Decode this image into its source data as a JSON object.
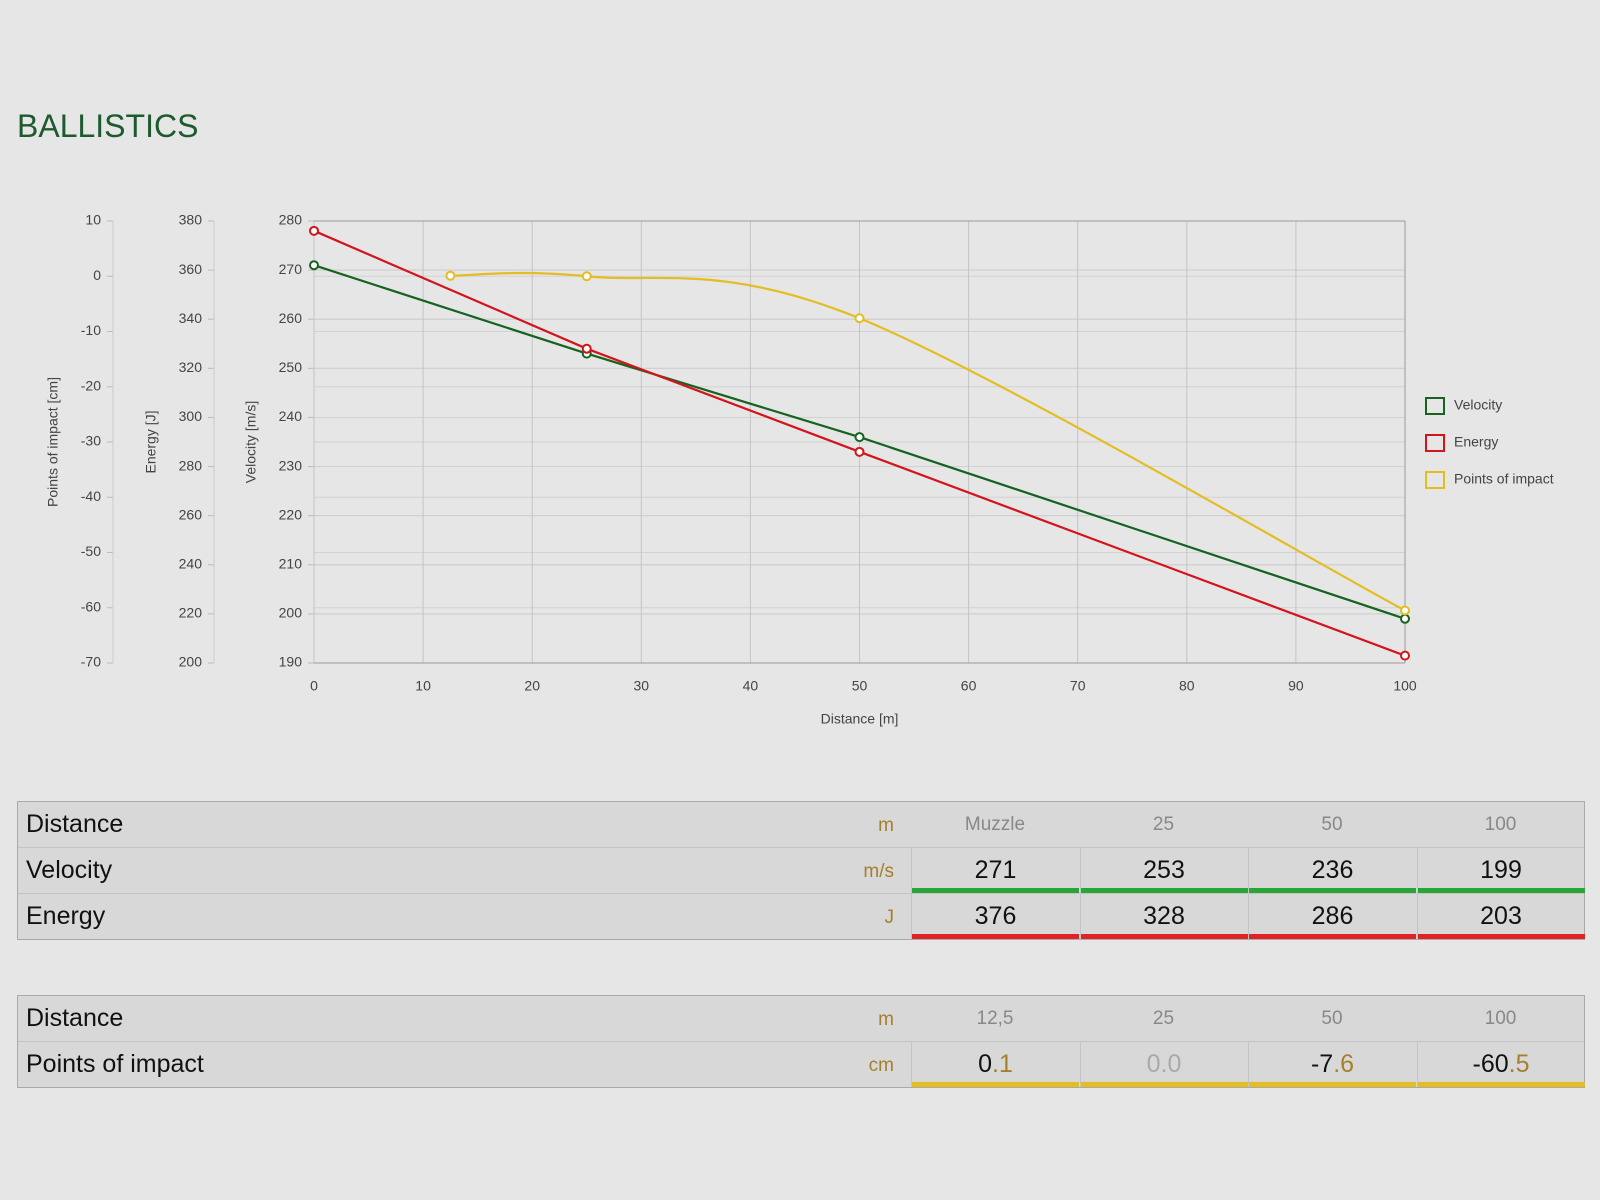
{
  "header": {
    "title": "BALLISTICS"
  },
  "chart_data": {
    "type": "line",
    "x_label": "Distance [m]",
    "y_label": "Velocity [m/s]",
    "y2_label": "Energy [J]",
    "y3_label": "Points of impact [cm]",
    "xlim": [
      0,
      100
    ],
    "xticks": [
      0,
      10,
      20,
      30,
      40,
      50,
      60,
      70,
      80,
      90,
      100
    ],
    "ylim": [
      190,
      280
    ],
    "yticks": [
      190,
      200,
      210,
      220,
      230,
      240,
      250,
      260,
      270,
      280
    ],
    "y2lim": [
      200,
      380
    ],
    "y2ticks": [
      200,
      220,
      240,
      260,
      280,
      300,
      320,
      340,
      360,
      380
    ],
    "y3lim": [
      -70,
      10
    ],
    "y3ticks": [
      -70,
      -60,
      -50,
      -40,
      -30,
      -20,
      -10,
      0,
      10
    ],
    "grid": true,
    "series": [
      {
        "name": "Velocity",
        "color": "#16631f",
        "axis": "y",
        "smooth": false,
        "x": [
          0,
          25,
          50,
          100
        ],
        "values": [
          271,
          253,
          236,
          199
        ]
      },
      {
        "name": "Energy",
        "color": "#d3141b",
        "axis": "y2",
        "smooth": false,
        "x": [
          0,
          25,
          50,
          100
        ],
        "values": [
          376,
          328,
          286,
          203
        ]
      },
      {
        "name": "Points of impact",
        "color": "#e3bd22",
        "axis": "y3",
        "smooth": true,
        "x": [
          12.5,
          25,
          50,
          100
        ],
        "values": [
          0.1,
          0.0,
          -7.6,
          -60.5
        ]
      }
    ]
  },
  "tables": [
    {
      "rows": [
        {
          "label": "Distance",
          "unit": "m",
          "cells": [
            "Muzzle",
            "25",
            "50",
            "100"
          ]
        },
        {
          "label": "Velocity",
          "unit": "m/s",
          "cells": [
            "271",
            "253",
            "236",
            "199"
          ],
          "bar_color": "#27a637"
        },
        {
          "label": "Energy",
          "unit": "J",
          "cells": [
            "376",
            "328",
            "286",
            "203"
          ],
          "bar_color": "#df2326"
        }
      ]
    },
    {
      "rows": [
        {
          "label": "Distance",
          "unit": "m",
          "cells": [
            "12,5",
            "25",
            "50",
            "100"
          ]
        },
        {
          "label": "Points of impact",
          "unit": "cm",
          "cells": [
            "0.1",
            "0.0",
            "-7.6",
            "-60.5"
          ],
          "bar_color": "#e3bd22"
        }
      ]
    }
  ]
}
